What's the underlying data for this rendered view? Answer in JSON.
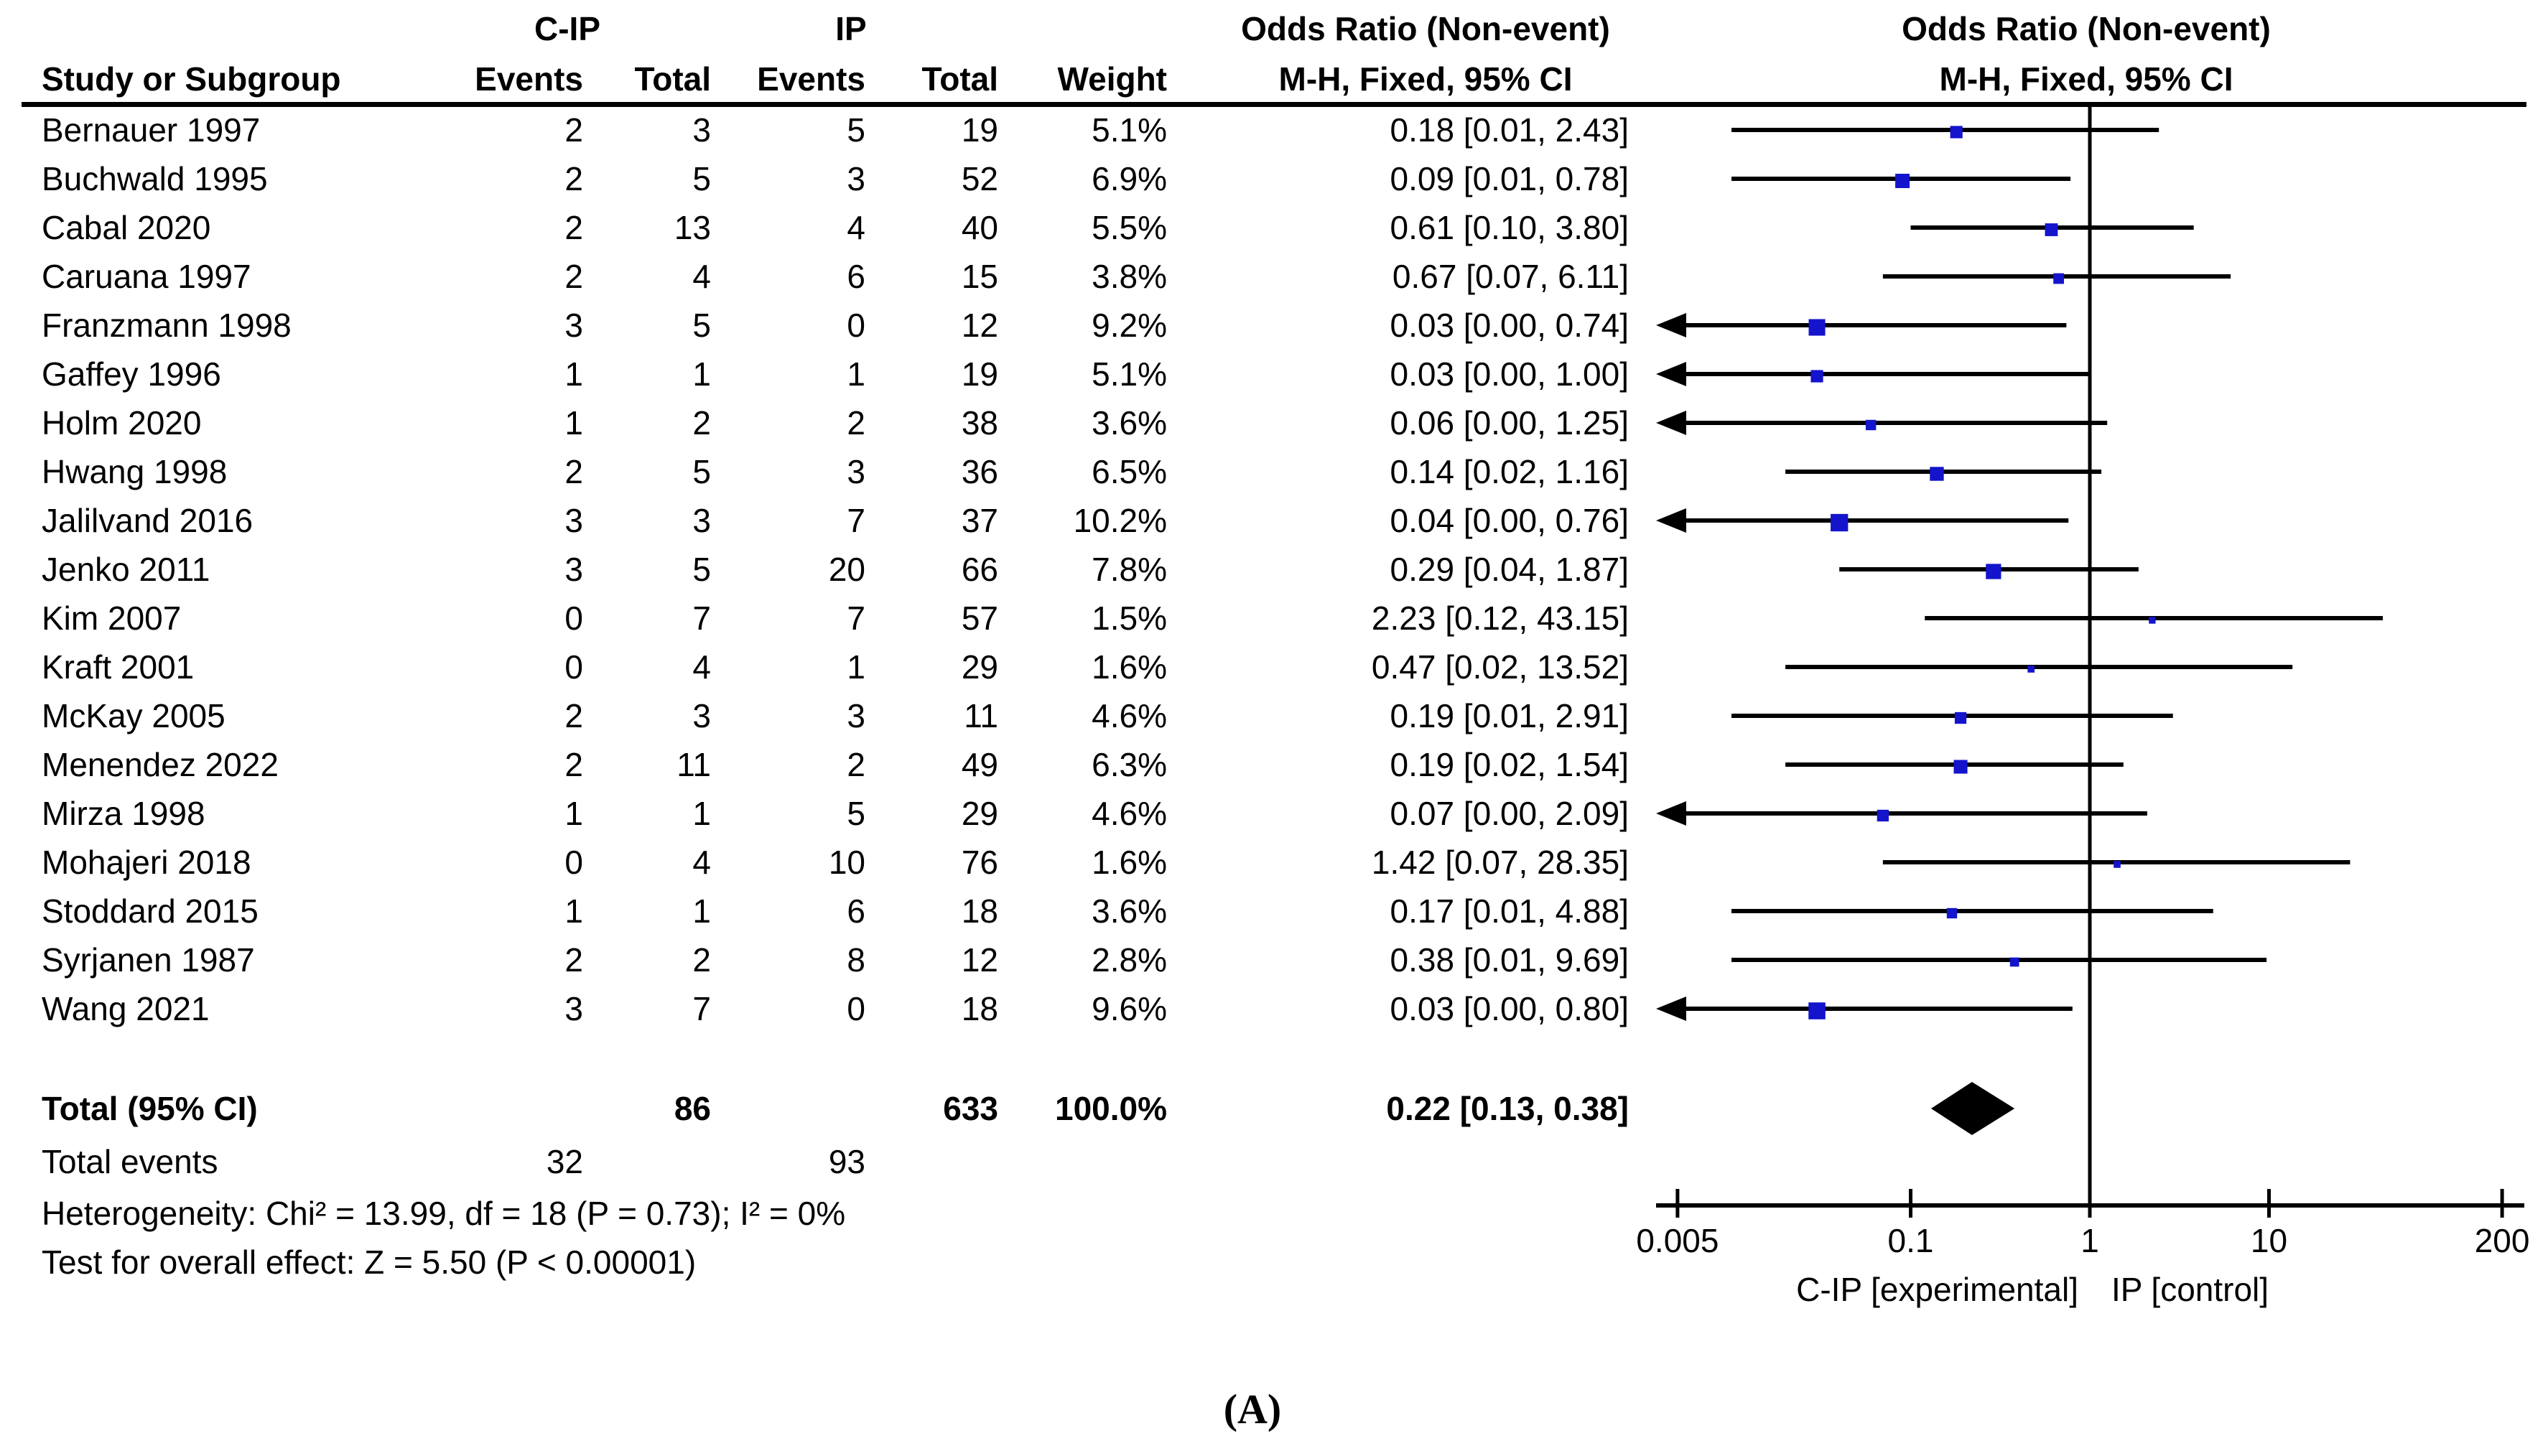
{
  "figure_label": "(A)",
  "columns": {
    "group1": "C-IP",
    "group2": "IP",
    "study": "Study or Subgroup",
    "events": "Events",
    "total": "Total",
    "weight": "Weight",
    "or_title": "Odds Ratio (Non-event)",
    "or_subtitle": "M-H, Fixed, 95% CI"
  },
  "chart_data": {
    "type": "forest",
    "effect_measure": "Odds Ratio (Non-event), M-H, Fixed, 95% CI",
    "x_scale": "log",
    "x_ticks": [
      0.005,
      0.1,
      1,
      10,
      200
    ],
    "x_tick_labels": [
      "0.005",
      "0.1",
      "1",
      "10",
      "200"
    ],
    "x_axis_left_label": "C-IP [experimental]",
    "x_axis_right_label": "IP [control]",
    "marker_color": "#1414cc",
    "studies": [
      {
        "name": "Bernauer 1997",
        "events1": "2",
        "total1": "3",
        "events2": "5",
        "total2": "19",
        "weight": "5.1%",
        "weight_value": 5.1,
        "or_label": "0.18 [0.01, 2.43]",
        "or": 0.18,
        "lo": 0.01,
        "hi": 2.43,
        "arrow_left": false
      },
      {
        "name": "Buchwald 1995",
        "events1": "2",
        "total1": "5",
        "events2": "3",
        "total2": "52",
        "weight": "6.9%",
        "weight_value": 6.9,
        "or_label": "0.09 [0.01, 0.78]",
        "or": 0.09,
        "lo": 0.01,
        "hi": 0.78,
        "arrow_left": false
      },
      {
        "name": "Cabal 2020",
        "events1": "2",
        "total1": "13",
        "events2": "4",
        "total2": "40",
        "weight": "5.5%",
        "weight_value": 5.5,
        "or_label": "0.61 [0.10, 3.80]",
        "or": 0.61,
        "lo": 0.1,
        "hi": 3.8,
        "arrow_left": false
      },
      {
        "name": "Caruana 1997",
        "events1": "2",
        "total1": "4",
        "events2": "6",
        "total2": "15",
        "weight": "3.8%",
        "weight_value": 3.8,
        "or_label": "0.67 [0.07, 6.11]",
        "or": 0.67,
        "lo": 0.07,
        "hi": 6.11,
        "arrow_left": false
      },
      {
        "name": "Franzmann 1998",
        "events1": "3",
        "total1": "5",
        "events2": "0",
        "total2": "12",
        "weight": "9.2%",
        "weight_value": 9.2,
        "or_label": "0.03 [0.00, 0.74]",
        "or": 0.03,
        "lo": 0,
        "hi": 0.74,
        "arrow_left": true
      },
      {
        "name": "Gaffey 1996",
        "events1": "1",
        "total1": "1",
        "events2": "1",
        "total2": "19",
        "weight": "5.1%",
        "weight_value": 5.1,
        "or_label": "0.03 [0.00, 1.00]",
        "or": 0.03,
        "lo": 0,
        "hi": 1.0,
        "arrow_left": true
      },
      {
        "name": "Holm 2020",
        "events1": "1",
        "total1": "2",
        "events2": "2",
        "total2": "38",
        "weight": "3.6%",
        "weight_value": 3.6,
        "or_label": "0.06 [0.00, 1.25]",
        "or": 0.06,
        "lo": 0,
        "hi": 1.25,
        "arrow_left": true
      },
      {
        "name": "Hwang 1998",
        "events1": "2",
        "total1": "5",
        "events2": "3",
        "total2": "36",
        "weight": "6.5%",
        "weight_value": 6.5,
        "or_label": "0.14 [0.02, 1.16]",
        "or": 0.14,
        "lo": 0.02,
        "hi": 1.16,
        "arrow_left": false
      },
      {
        "name": "Jalilvand 2016",
        "events1": "3",
        "total1": "3",
        "events2": "7",
        "total2": "37",
        "weight": "10.2%",
        "weight_value": 10.2,
        "or_label": "0.04 [0.00, 0.76]",
        "or": 0.04,
        "lo": 0,
        "hi": 0.76,
        "arrow_left": true
      },
      {
        "name": "Jenko 2011",
        "events1": "3",
        "total1": "5",
        "events2": "20",
        "total2": "66",
        "weight": "7.8%",
        "weight_value": 7.8,
        "or_label": "0.29 [0.04, 1.87]",
        "or": 0.29,
        "lo": 0.04,
        "hi": 1.87,
        "arrow_left": false
      },
      {
        "name": "Kim 2007",
        "events1": "0",
        "total1": "7",
        "events2": "7",
        "total2": "57",
        "weight": "1.5%",
        "weight_value": 1.5,
        "or_label": "2.23 [0.12, 43.15]",
        "or": 2.23,
        "lo": 0.12,
        "hi": 43.15,
        "arrow_left": false
      },
      {
        "name": "Kraft 2001",
        "events1": "0",
        "total1": "4",
        "events2": "1",
        "total2": "29",
        "weight": "1.6%",
        "weight_value": 1.6,
        "or_label": "0.47 [0.02, 13.52]",
        "or": 0.47,
        "lo": 0.02,
        "hi": 13.52,
        "arrow_left": false
      },
      {
        "name": "McKay 2005",
        "events1": "2",
        "total1": "3",
        "events2": "3",
        "total2": "11",
        "weight": "4.6%",
        "weight_value": 4.6,
        "or_label": "0.19 [0.01, 2.91]",
        "or": 0.19,
        "lo": 0.01,
        "hi": 2.91,
        "arrow_left": false
      },
      {
        "name": "Menendez 2022",
        "events1": "2",
        "total1": "11",
        "events2": "2",
        "total2": "49",
        "weight": "6.3%",
        "weight_value": 6.3,
        "or_label": "0.19 [0.02, 1.54]",
        "or": 0.19,
        "lo": 0.02,
        "hi": 1.54,
        "arrow_left": false
      },
      {
        "name": "Mirza 1998",
        "events1": "1",
        "total1": "1",
        "events2": "5",
        "total2": "29",
        "weight": "4.6%",
        "weight_value": 4.6,
        "or_label": "0.07 [0.00, 2.09]",
        "or": 0.07,
        "lo": 0,
        "hi": 2.09,
        "arrow_left": true
      },
      {
        "name": "Mohajeri 2018",
        "events1": "0",
        "total1": "4",
        "events2": "10",
        "total2": "76",
        "weight": "1.6%",
        "weight_value": 1.6,
        "or_label": "1.42 [0.07, 28.35]",
        "or": 1.42,
        "lo": 0.07,
        "hi": 28.35,
        "arrow_left": false
      },
      {
        "name": "Stoddard 2015",
        "events1": "1",
        "total1": "1",
        "events2": "6",
        "total2": "18",
        "weight": "3.6%",
        "weight_value": 3.6,
        "or_label": "0.17 [0.01, 4.88]",
        "or": 0.17,
        "lo": 0.01,
        "hi": 4.88,
        "arrow_left": false
      },
      {
        "name": "Syrjanen 1987",
        "events1": "2",
        "total1": "2",
        "events2": "8",
        "total2": "12",
        "weight": "2.8%",
        "weight_value": 2.8,
        "or_label": "0.38 [0.01, 9.69]",
        "or": 0.38,
        "lo": 0.01,
        "hi": 9.69,
        "arrow_left": false
      },
      {
        "name": "Wang 2021",
        "events1": "3",
        "total1": "7",
        "events2": "0",
        "total2": "18",
        "weight": "9.6%",
        "weight_value": 9.6,
        "or_label": "0.03 [0.00, 0.80]",
        "or": 0.03,
        "lo": 0,
        "hi": 0.8,
        "arrow_left": true
      }
    ],
    "total": {
      "label": "Total (95% CI)",
      "total1": "86",
      "total2": "633",
      "weight": "100.0%",
      "or_label": "0.22 [0.13, 0.38]",
      "or": 0.22,
      "lo": 0.13,
      "hi": 0.38
    },
    "total_events": {
      "label": "Total events",
      "events1": "32",
      "events2": "93"
    },
    "heterogeneity": "Heterogeneity: Chi² = 13.99, df = 18 (P = 0.73); I² = 0%",
    "overall_effect": "Test for overall effect: Z = 5.50 (P < 0.00001)"
  }
}
